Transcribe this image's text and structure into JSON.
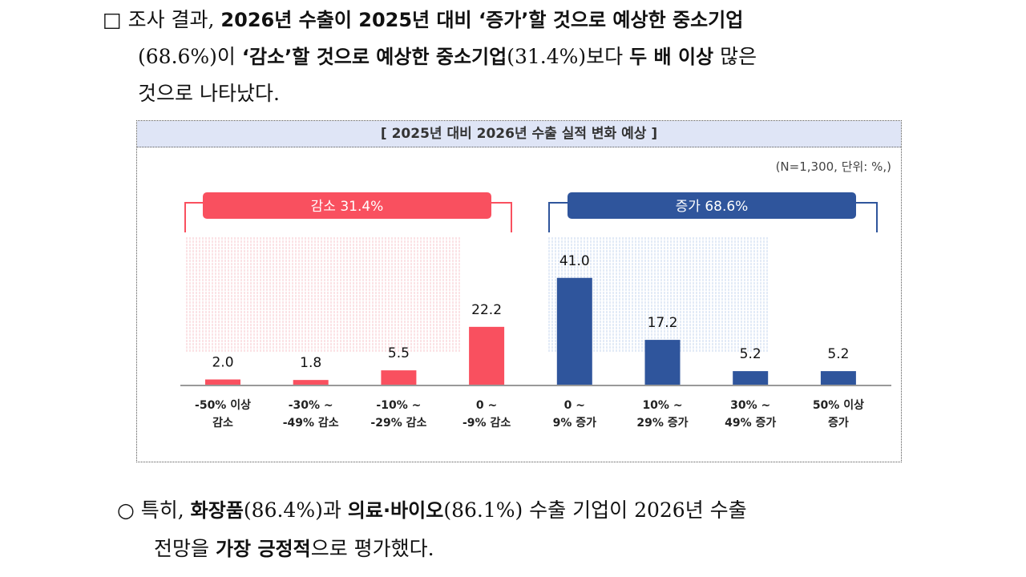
{
  "para1": {
    "l1": [
      "□ 조사 결과, ",
      "2026년 수출이 2025년 대비 ‘증가’할 것으로 예상한 중소기업"
    ],
    "l2": [
      "(68.6%)이 ",
      "‘감소’할 것으로 예상한 중소기업",
      "(31.4%)보다 ",
      "두 배 이상",
      " 많은"
    ],
    "l3": [
      "것으로 나타났다."
    ]
  },
  "chart": {
    "title": "[ 2025년 대비 2026년 수출 실적 변화 예상 ]",
    "unit_note": "(N=1,300, 단위: %,)",
    "group_decrease": "감소 31.4%",
    "group_increase": "증가 68.6%",
    "colors": {
      "decrease": "#f9505f",
      "increase": "#2f559c"
    }
  },
  "chart_data": {
    "type": "bar",
    "title": "[ 2025년 대비 2026년 수출 실적 변화 예상 ]",
    "categories": [
      [
        "-50% 이상",
        "감소"
      ],
      [
        "-30% ~",
        "-49% 감소"
      ],
      [
        "-10% ~",
        "-29% 감소"
      ],
      [
        "0 ~",
        "-9% 감소"
      ],
      [
        "0 ~",
        "9% 증가"
      ],
      [
        "10% ~",
        "29% 증가"
      ],
      [
        "30% ~",
        "49% 증가"
      ],
      [
        "50% 이상",
        "증가"
      ]
    ],
    "values": [
      2.0,
      1.8,
      5.5,
      22.2,
      41.0,
      17.2,
      5.2,
      5.2
    ],
    "value_labels": [
      "2.0",
      "1.8",
      "5.5",
      "22.2",
      "41.0",
      "17.2",
      "5.2",
      "5.2"
    ],
    "groups": [
      {
        "label": "감소 31.4%",
        "color": "#f9505f"
      },
      {
        "label": "증가 68.6%",
        "color": "#2f559c"
      }
    ],
    "grid": false
  },
  "para2": {
    "l1": [
      "○ 특히, ",
      "화장품",
      "(86.4%)과 ",
      "의료·바이오",
      "(86.1%) 수출 기업이 2026년 수출"
    ],
    "l2": [
      "전망을 ",
      "가장 긍정적",
      "으로 평가했다."
    ]
  }
}
